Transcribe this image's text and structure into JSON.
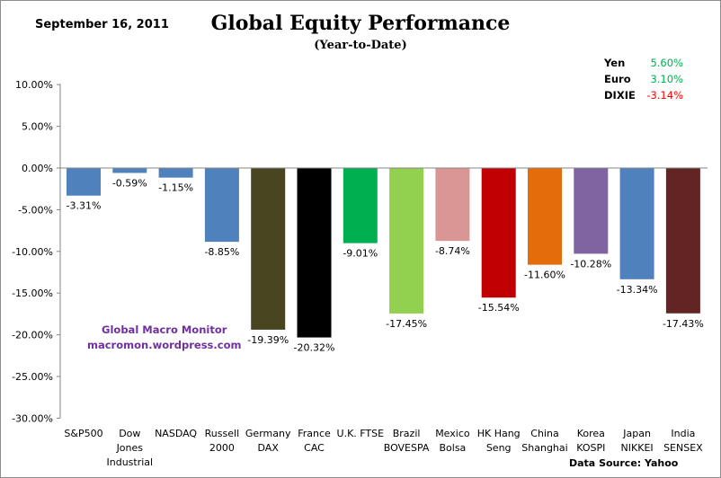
{
  "header": {
    "date": "September 16,  2011",
    "source": "Data Source:   Yahoo",
    "watermark_line1": "Global Macro Monitor",
    "watermark_line2": "macromon.wordpress.com"
  },
  "fx": [
    {
      "label": "Yen",
      "value": "5.60%",
      "color": "#00b050"
    },
    {
      "label": "Euro",
      "value": "3.10%",
      "color": "#00b050"
    },
    {
      "label": "DIXIE",
      "value": "-3.14%",
      "color": "#ff0000"
    }
  ],
  "chart_data": {
    "type": "bar",
    "title": "Global Equity Performance",
    "subtitle": "(Year-to-Date)",
    "xlabel": "",
    "ylabel": "",
    "ylim": [
      -30,
      10
    ],
    "yticks": [
      10,
      5,
      0,
      -5,
      -10,
      -15,
      -20,
      -25,
      -30
    ],
    "ytick_labels": [
      "10.00%",
      "5.00%",
      "0.00%",
      "-5.00%",
      "-10.00%",
      "-15.00%",
      "-20.00%",
      "-25.00%",
      "-30.00%"
    ],
    "categories": [
      [
        "S&P500"
      ],
      [
        "Dow",
        "Jones",
        "Industrial"
      ],
      [
        "NASDAQ"
      ],
      [
        "Russell",
        "2000"
      ],
      [
        "Germany",
        "DAX"
      ],
      [
        "France",
        "CAC"
      ],
      [
        "U.K. FTSE"
      ],
      [
        "Brazil",
        "BOVESPA"
      ],
      [
        "Mexico",
        "Bolsa"
      ],
      [
        "HK Hang",
        "Seng"
      ],
      [
        "China",
        "Shanghai"
      ],
      [
        "Korea",
        "KOSPI"
      ],
      [
        "Japan",
        "NIKKEI"
      ],
      [
        "India",
        "SENSEX"
      ]
    ],
    "values": [
      -3.31,
      -0.59,
      -1.15,
      -8.85,
      -19.39,
      -20.32,
      -9.01,
      -17.45,
      -8.74,
      -15.54,
      -11.6,
      -10.28,
      -13.34,
      -17.43
    ],
    "data_labels": [
      "-3.31%",
      "-0.59%",
      "-1.15%",
      "-8.85%",
      "-19.39%",
      "-20.32%",
      "-9.01%",
      "-17.45%",
      "-8.74%",
      "-15.54%",
      "-11.60%",
      "-10.28%",
      "-13.34%",
      "-17.43%"
    ],
    "colors": [
      "#4f81bd",
      "#4f81bd",
      "#4f81bd",
      "#4f81bd",
      "#4a4521",
      "#000000",
      "#00b050",
      "#92d050",
      "#d99694",
      "#c00000",
      "#e46c0a",
      "#8064a2",
      "#4f81bd",
      "#632523"
    ],
    "grid": false,
    "legend": "none"
  }
}
